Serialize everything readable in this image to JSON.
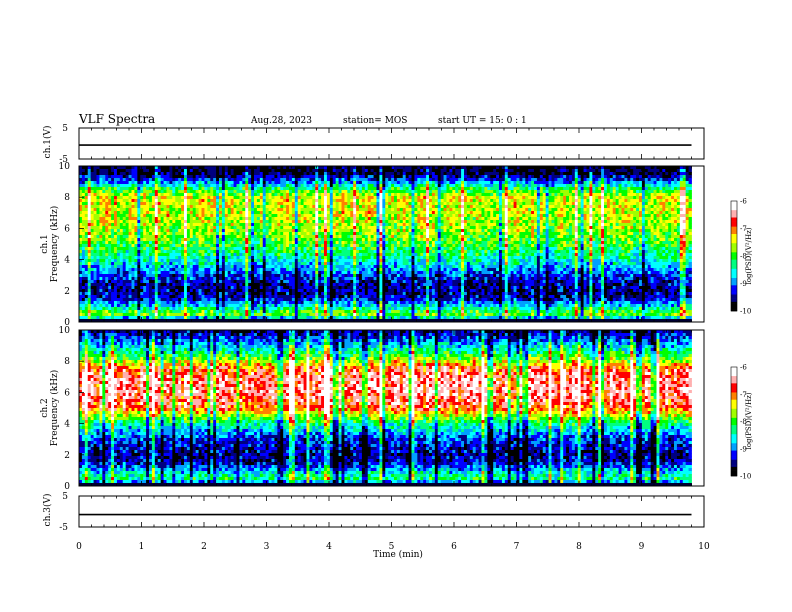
{
  "header": {
    "title": "VLF Spectra",
    "date": "Aug.28, 2023",
    "station": "station= MOS",
    "start": "start UT =  15: 0  : 1"
  },
  "colormap": [
    "#000000",
    "#000080",
    "#0000ff",
    "#00a0ff",
    "#00ffff",
    "#00ff80",
    "#00ff00",
    "#a0ff00",
    "#ffff00",
    "#ff8000",
    "#ff0000",
    "#ffb0b0",
    "#ffffff"
  ],
  "chart_data": [
    {
      "type": "line",
      "name": "ch1-voltage",
      "ylabel": "ch.1(V)",
      "ylim": [
        -5,
        5
      ],
      "yticks": [
        "5",
        "-5"
      ],
      "xlim": [
        0,
        10
      ],
      "baseline": -0.5,
      "series": [
        {
          "x": [
            0,
            9.8
          ],
          "y": [
            -0.5,
            -0.5
          ]
        }
      ]
    },
    {
      "type": "heatmap",
      "name": "ch1-spectrogram",
      "ylabel_top": "ch.1",
      "ylabel": "Frequency (kHz)",
      "ylim": [
        0,
        10
      ],
      "yticks": [
        "0",
        "2",
        "4",
        "6",
        "8",
        "10"
      ],
      "xlim": [
        0,
        10
      ],
      "data_end_min": 9.8,
      "profile_freq_khz": [
        0,
        0.5,
        1,
        1.5,
        2,
        2.5,
        3,
        4,
        5,
        6,
        7,
        8,
        8.5,
        9,
        9.5,
        10
      ],
      "profile_level": [
        0.05,
        0.55,
        0.35,
        0.15,
        0.12,
        0.14,
        0.2,
        0.38,
        0.5,
        0.58,
        0.62,
        0.62,
        0.48,
        0.25,
        0.08,
        0.03
      ],
      "colorbar": {
        "label": "log(PSD)(V²/Hz)",
        "ticks": [
          "-6",
          "-7",
          "-8",
          "-9",
          "-10"
        ],
        "range": [
          -10,
          -6
        ]
      }
    },
    {
      "type": "heatmap",
      "name": "ch2-spectrogram",
      "ylabel_top": "ch.2",
      "ylabel": "Frequency (kHz)",
      "ylim": [
        0,
        10
      ],
      "yticks": [
        "0",
        "2",
        "4",
        "6",
        "8",
        "10"
      ],
      "xlim": [
        0,
        10
      ],
      "data_end_min": 9.8,
      "profile_freq_khz": [
        0,
        0.5,
        1,
        1.5,
        2,
        3,
        4,
        4.5,
        5,
        6,
        7,
        7.5,
        8,
        8.5,
        9,
        9.5,
        10
      ],
      "profile_level": [
        0.05,
        0.45,
        0.3,
        0.15,
        0.12,
        0.2,
        0.4,
        0.6,
        0.78,
        0.88,
        0.86,
        0.8,
        0.6,
        0.45,
        0.32,
        0.2,
        0.1
      ],
      "colorbar": {
        "label": "log(PSD)(V²/Hz)",
        "ticks": [
          "-6",
          "-7",
          "-8",
          "-9",
          "-10"
        ],
        "range": [
          -10,
          -6
        ]
      }
    },
    {
      "type": "line",
      "name": "ch3-voltage",
      "ylabel": "ch.3(V)",
      "ylim": [
        -5,
        5
      ],
      "yticks": [
        "5",
        "-5"
      ],
      "xlim": [
        0,
        10
      ],
      "xlabel": "Time (min)",
      "xticks": [
        "0",
        "1",
        "2",
        "3",
        "4",
        "5",
        "6",
        "7",
        "8",
        "9",
        "10"
      ],
      "baseline": -1,
      "series": [
        {
          "x": [
            0,
            9.8
          ],
          "y": [
            -1,
            -1
          ]
        }
      ]
    }
  ]
}
